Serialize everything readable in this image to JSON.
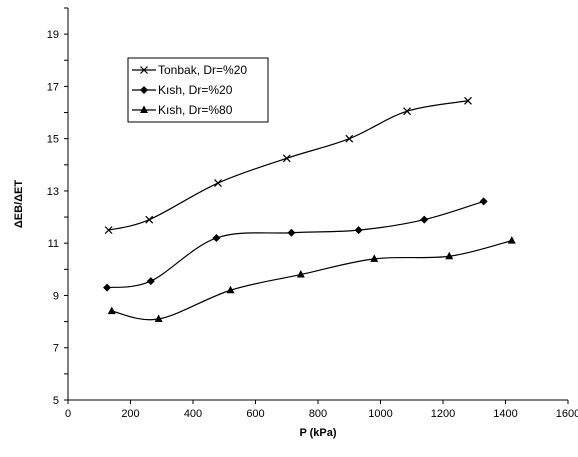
{
  "chart_data": {
    "type": "line",
    "title": "",
    "xlabel": "P (kPa)",
    "ylabel": "ΔEB/ΔET",
    "xlim": [
      0,
      1600
    ],
    "ylim": [
      5,
      20
    ],
    "x_ticks": [
      0,
      200,
      400,
      600,
      800,
      1000,
      1200,
      1400,
      1600
    ],
    "y_ticks": [
      5,
      7,
      9,
      11,
      13,
      15,
      17,
      19
    ],
    "grid": false,
    "legend_position": "top-left",
    "series": [
      {
        "name": "Tonbak, Dr=%20",
        "marker": "x",
        "x": [
          130,
          260,
          480,
          700,
          900,
          1085,
          1280
        ],
        "y": [
          11.5,
          11.9,
          13.3,
          14.25,
          15.0,
          16.05,
          16.45
        ]
      },
      {
        "name": "Kısh, Dr=%20",
        "marker": "diamond",
        "x": [
          125,
          265,
          475,
          715,
          930,
          1140,
          1330
        ],
        "y": [
          9.3,
          9.55,
          11.2,
          11.4,
          11.5,
          11.9,
          12.6
        ]
      },
      {
        "name": "Kısh, Dr=%80",
        "marker": "triangle",
        "x": [
          140,
          290,
          520,
          745,
          980,
          1220,
          1420
        ],
        "y": [
          8.4,
          8.1,
          9.2,
          9.8,
          10.4,
          10.5,
          11.1
        ]
      }
    ]
  }
}
